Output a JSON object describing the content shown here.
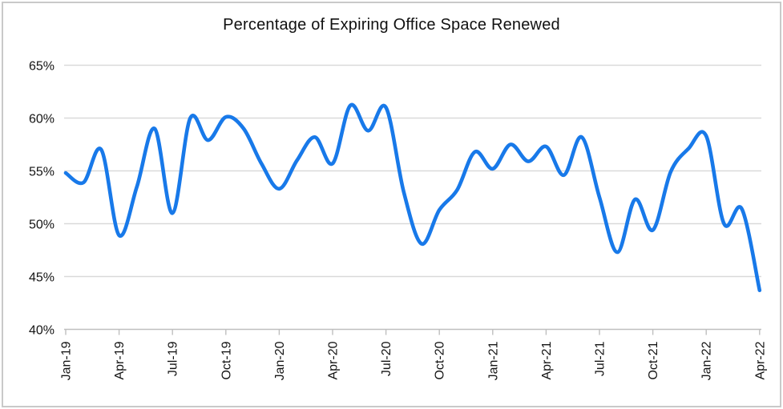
{
  "chart_data": {
    "type": "line",
    "title": "Percentage of Expiring Office Space Renewed",
    "x": [
      "Jan-19",
      "Feb-19",
      "Mar-19",
      "Apr-19",
      "May-19",
      "Jun-19",
      "Jul-19",
      "Aug-19",
      "Sep-19",
      "Oct-19",
      "Nov-19",
      "Dec-19",
      "Jan-20",
      "Feb-20",
      "Mar-20",
      "Apr-20",
      "May-20",
      "Jun-20",
      "Jul-20",
      "Aug-20",
      "Sep-20",
      "Oct-20",
      "Nov-20",
      "Dec-20",
      "Jan-21",
      "Feb-21",
      "Mar-21",
      "Apr-21",
      "May-21",
      "Jun-21",
      "Jul-21",
      "Aug-21",
      "Sep-21",
      "Oct-21",
      "Nov-21",
      "Dec-21",
      "Jan-22",
      "Feb-22",
      "Mar-22",
      "Apr-22"
    ],
    "series": [
      {
        "name": "Percentage of Expiring Office Space Renewed",
        "values": [
          54.8,
          53.9,
          57.0,
          48.9,
          53.5,
          59.0,
          51.0,
          60.0,
          57.9,
          60.1,
          59.0,
          55.7,
          53.3,
          56.0,
          58.2,
          55.7,
          61.2,
          58.8,
          61.0,
          53.0,
          48.1,
          51.3,
          53.2,
          56.8,
          55.2,
          57.5,
          55.9,
          57.3,
          54.6,
          58.2,
          52.5,
          47.3,
          52.3,
          49.4,
          54.9,
          57.1,
          58.3,
          50.0,
          51.4,
          43.7
        ],
        "color": "#1879e9",
        "smooth": true
      }
    ],
    "x_tick_labels": [
      "Jan-19",
      "Apr-19",
      "Jul-19",
      "Oct-19",
      "Jan-20",
      "Apr-20",
      "Jul-20",
      "Oct-20",
      "Jan-21",
      "Apr-21",
      "Jul-21",
      "Oct-21",
      "Jan-22",
      "Apr-22"
    ],
    "x_tick_every_n_points": 3,
    "x_label_rotation_deg": -90,
    "y_tick_labels": [
      "65%",
      "60%",
      "55%",
      "50%",
      "45%",
      "40%"
    ],
    "ylim": [
      40,
      65
    ],
    "y_tick_step": 5,
    "xlabel": "",
    "ylabel": "",
    "grid": "horizontal",
    "legend_position": "none",
    "gridline_color": "#d9d9d9",
    "axis_color": "#bfbfbf",
    "title_color": "#111111",
    "label_color": "#141414",
    "background_color": "#ffffff",
    "frame_border_color": "#c9c9c9"
  }
}
